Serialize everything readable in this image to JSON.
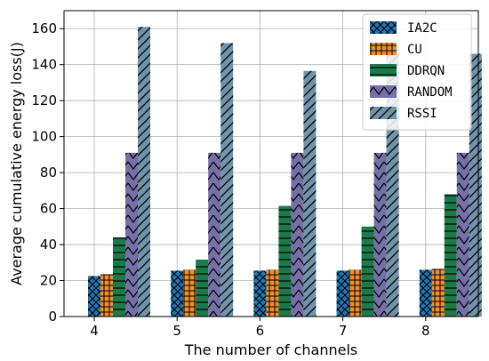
{
  "chart_data": {
    "type": "bar",
    "title": "",
    "xlabel": "The number of channels",
    "ylabel": "Average cumulative energy loss(J)",
    "categories": [
      "4",
      "5",
      "6",
      "7",
      "8"
    ],
    "ylim": [
      0,
      170
    ],
    "yticks": [
      0,
      20,
      40,
      60,
      80,
      100,
      120,
      140,
      160
    ],
    "grid": true,
    "legend_position": "top-right",
    "series": [
      {
        "name": "IA2C",
        "color": "#1f77b4",
        "hatch": "cross",
        "values": [
          22.5,
          25.5,
          25.5,
          25.5,
          26
        ]
      },
      {
        "name": "CU",
        "color": "#f28e2b",
        "hatch": "grid",
        "values": [
          23.5,
          26,
          26,
          26,
          26.5
        ]
      },
      {
        "name": "DDRQN",
        "color": "#1a7a4a",
        "hatch": "horizontal",
        "values": [
          44,
          31.5,
          61.5,
          50,
          68
        ]
      },
      {
        "name": "RANDOM",
        "color": "#7570a8",
        "hatch": "chevron",
        "values": [
          91,
          91,
          91,
          91,
          91
        ]
      },
      {
        "name": "RSSI",
        "color": "#6f93a8",
        "hatch": "diagonal",
        "values": [
          161,
          152,
          136.5,
          150,
          146
        ]
      }
    ]
  }
}
